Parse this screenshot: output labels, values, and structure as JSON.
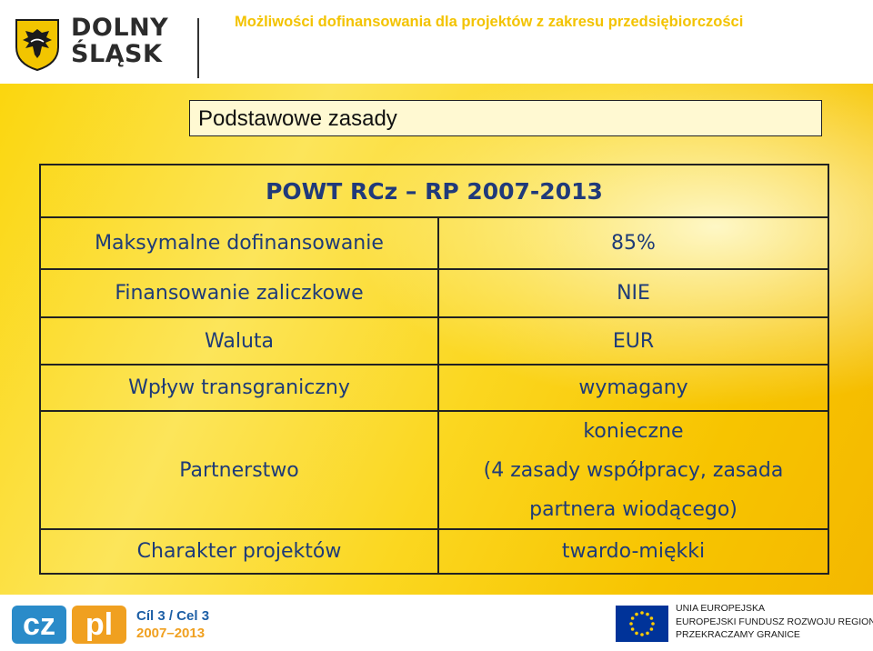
{
  "header": {
    "logo_text": "DOLNY ŚLĄSK",
    "title": "Możliwości dofinansowania dla projektów z zakresu przedsiębiorczości"
  },
  "slide": {
    "title": "Podstawowe zasady",
    "table": {
      "heading": "POWT RCz – RP 2007-2013",
      "rows": [
        {
          "label": "Maksymalne dofinansowanie",
          "value": "85%"
        },
        {
          "label": "Finansowanie zaliczkowe",
          "value": "NIE"
        },
        {
          "label": "Waluta",
          "value": "EUR"
        },
        {
          "label": "Wpływ transgraniczny",
          "value": "wymagany"
        },
        {
          "label": "Partnerstwo",
          "value_lines": [
            "konieczne",
            "(4 zasady współpracy, zasada",
            "partnera wiodącego)"
          ]
        },
        {
          "label": "Charakter projektów",
          "value": "twardo-miękki"
        }
      ]
    }
  },
  "footer": {
    "cz_text": "cz",
    "pl_text": "pl",
    "cil_line1": "Cíl 3 / Cel 3",
    "cil_line2": "2007–2013",
    "eu_lines": [
      "UNIA EUROPEJSKA",
      "EUROPEJSKI FUNDUSZ ROZWOJU REGIONALNEGO",
      "PRZEKRACZAMY GRANICE"
    ]
  },
  "colors": {
    "header_title": "#f3c300",
    "table_text": "#1e3b78",
    "slide_yellow": "#fbd60e"
  }
}
